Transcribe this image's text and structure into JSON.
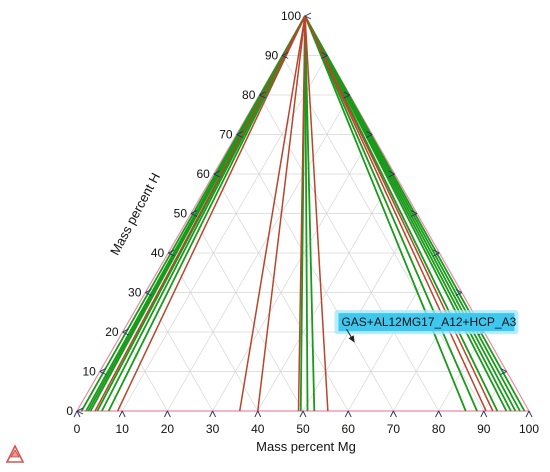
{
  "chart_data": {
    "type": "ternary",
    "xlabel": "Mass percent Mg",
    "ylabel": "Mass percent H",
    "grid": true,
    "bottom_ticks": [
      0,
      10,
      20,
      30,
      40,
      50,
      60,
      70,
      80,
      90,
      100
    ],
    "left_ticks": [
      0,
      10,
      20,
      30,
      40,
      50,
      60,
      70,
      80,
      90,
      100
    ],
    "apex": {
      "Mg": 0,
      "H": 100
    },
    "tie_lines": {
      "green": [
        {
          "Mg": 1.0,
          "H": 0
        },
        {
          "Mg": 2.0,
          "H": 0
        },
        {
          "Mg": 2.5,
          "H": 0
        },
        {
          "Mg": 3.0,
          "H": 0
        },
        {
          "Mg": 4.5,
          "H": 0
        },
        {
          "Mg": 5.5,
          "H": 0
        },
        {
          "Mg": 7.0,
          "H": 0
        },
        {
          "Mg": 49.5,
          "H": 0
        },
        {
          "Mg": 51.0,
          "H": 0
        },
        {
          "Mg": 52.5,
          "H": 0
        },
        {
          "Mg": 86.0,
          "H": 0
        },
        {
          "Mg": 88.5,
          "H": 0
        },
        {
          "Mg": 93.0,
          "H": 0
        },
        {
          "Mg": 95.0,
          "H": 0
        },
        {
          "Mg": 96.0,
          "H": 0
        },
        {
          "Mg": 97.0,
          "H": 0
        },
        {
          "Mg": 98.0,
          "H": 0
        },
        {
          "Mg": 99.0,
          "H": 0
        }
      ],
      "red": [
        {
          "Mg": 4.0,
          "H": 0
        },
        {
          "Mg": 9.0,
          "H": 0
        },
        {
          "Mg": 36.0,
          "H": 0
        },
        {
          "Mg": 40.0,
          "H": 0
        },
        {
          "Mg": 49.0,
          "H": 0
        },
        {
          "Mg": 55.5,
          "H": 0
        },
        {
          "Mg": 90.5,
          "H": 0
        },
        {
          "Mg": 92.0,
          "H": 0
        }
      ]
    },
    "annotations": [
      {
        "text": "GAS+AL12MG17_A12+HCP_A3",
        "label_at": {
          "Mg": 46.5,
          "H": 22.5
        },
        "arrow_to": {
          "Mg": 52.5,
          "H": 17.5
        }
      }
    ]
  },
  "colors": {
    "green_line": "#1a9a1a",
    "red_line": "#b8452c",
    "grid": "#d6d6d6",
    "frame_tick": "#2a2a6a",
    "label_bg": "#3ec8f0",
    "label_glow": "#9fe8ff",
    "logo": "#d9534f"
  },
  "icons": {
    "logo": "triangle-logo-icon"
  }
}
